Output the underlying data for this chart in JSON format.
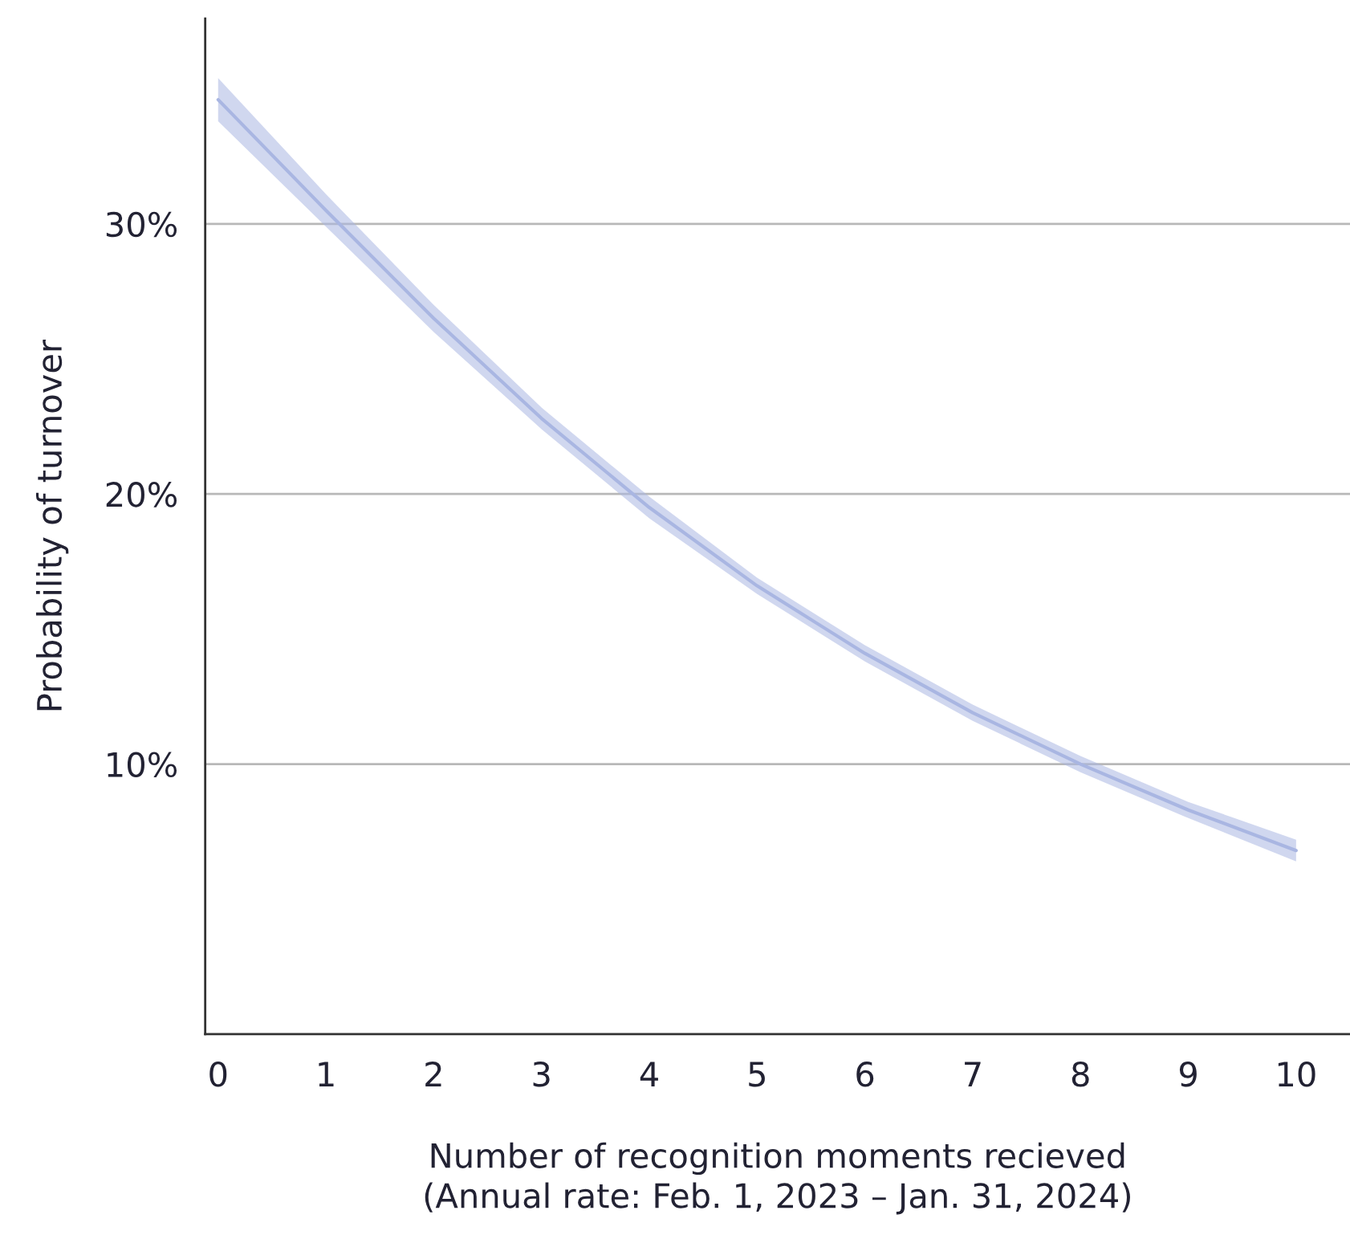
{
  "chart_data": {
    "type": "line",
    "xlabel": "Number of recognition moments recieved\n(Annual rate: Feb. 1, 2023 – Jan. 31, 2024)",
    "ylabel": "Probability of turnover",
    "x": [
      0,
      1,
      2,
      3,
      4,
      5,
      6,
      7,
      8,
      9,
      10
    ],
    "series": [
      {
        "color": "#a9b6e2",
        "values": [
          34.6,
          30.5,
          26.5,
          22.8,
          19.5,
          16.6,
          14.1,
          11.9,
          10.0,
          8.3,
          6.8
        ],
        "lower": [
          33.8,
          29.9,
          26.0,
          22.4,
          19.1,
          16.3,
          13.8,
          11.6,
          9.7,
          8.0,
          6.4
        ],
        "upper": [
          35.4,
          31.1,
          27.0,
          23.2,
          19.9,
          16.9,
          14.4,
          12.2,
          10.3,
          8.6,
          7.2
        ]
      }
    ],
    "xlim": [
      -0.12,
      10.5
    ],
    "ylim": [
      0,
      37.6
    ],
    "xticks": [
      0,
      1,
      2,
      3,
      4,
      5,
      6,
      7,
      8,
      9,
      10
    ],
    "yticks": [
      {
        "value": 10,
        "label": "10%"
      },
      {
        "value": 20,
        "label": "20%"
      },
      {
        "value": 30,
        "label": "30%"
      }
    ],
    "grid": "y",
    "marker": "none",
    "line_style": "solid"
  }
}
